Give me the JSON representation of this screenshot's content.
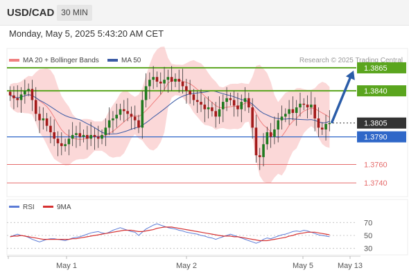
{
  "header": {
    "title": "USD/CAD",
    "timeframe": "30 MIN",
    "datetime": "Monday, May 5, 2025 5:43:20 AM CET"
  },
  "legend": {
    "ma20_label": "MA 20 + Bollinger Bands",
    "ma50_label": "MA 50",
    "source": "Research © 2025 Trading Central",
    "rsi_label": "RSI",
    "rsi_ma_label": "9MA"
  },
  "colors": {
    "resistance": "#5aa51e",
    "support": "#2f67c8",
    "support_weak": "#e56a6a",
    "candle_up": "#1f7a1f",
    "candle_down": "#a31a1a",
    "bollinger": "#f7b8b8",
    "ma20": "#f08080",
    "ma50": "#3b5ba5",
    "rsi": "#5b7bd6",
    "rsi_ma": "#d63030",
    "arrow": "#2a5ca8",
    "price_tag": "#333333"
  },
  "chart_data": {
    "type": "candlestick",
    "pair": "USD/CAD",
    "interval": "30 MIN",
    "y_range": [
      1.3725,
      1.388
    ],
    "x_labels": [
      "May 1",
      "May 2",
      "May 5",
      "May 13"
    ],
    "levels": [
      {
        "value": 1.3865,
        "label": "1.3865",
        "kind": "resistance"
      },
      {
        "value": 1.384,
        "label": "1.3840",
        "kind": "resistance"
      },
      {
        "value": 1.3805,
        "label": "1.3805",
        "kind": "last_price"
      },
      {
        "value": 1.379,
        "label": "1.3790",
        "kind": "support"
      },
      {
        "value": 1.376,
        "label": "1.3760",
        "kind": "support_weak"
      },
      {
        "value": 1.374,
        "label": "1.3740",
        "kind": "support_weak"
      }
    ],
    "last_price": 1.3805,
    "price_close_path": [
      1.3835,
      1.3832,
      1.383,
      1.3836,
      1.384,
      1.3842,
      1.383,
      1.3815,
      1.3808,
      1.381,
      1.3802,
      1.3795,
      1.3788,
      1.3783,
      1.378,
      1.3782,
      1.3788,
      1.3792,
      1.3794,
      1.379,
      1.3792,
      1.3788,
      1.3792,
      1.379,
      1.3788,
      1.3792,
      1.38,
      1.3808,
      1.381,
      1.3814,
      1.382,
      1.3818,
      1.3815,
      1.3812,
      1.3808,
      1.38,
      1.383,
      1.3845,
      1.3852,
      1.3855,
      1.385,
      1.3848,
      1.3852,
      1.3855,
      1.385,
      1.3853,
      1.385,
      1.3845,
      1.384,
      1.3836,
      1.383,
      1.3828,
      1.3825,
      1.382,
      1.3822,
      1.3818,
      1.3812,
      1.382,
      1.3828,
      1.3832,
      1.383,
      1.3824,
      1.382,
      1.3828,
      1.3832,
      1.3822,
      1.38,
      1.377,
      1.3768,
      1.3782,
      1.3795,
      1.379,
      1.3798,
      1.3808,
      1.3812,
      1.3815,
      1.382,
      1.3816,
      1.3822,
      1.3826,
      1.3825,
      1.3822,
      1.3825,
      1.381,
      1.38,
      1.3798,
      1.3804,
      1.3805
    ],
    "projection": {
      "from": 1.3805,
      "to": 1.3865
    },
    "rsi": {
      "levels": [
        70,
        50,
        30
      ],
      "range": [
        20,
        80
      ],
      "values": [
        48,
        50,
        52,
        50,
        49,
        47,
        44,
        42,
        40,
        42,
        44,
        45,
        45,
        44,
        43,
        42,
        44,
        46,
        47,
        48,
        50,
        52,
        54,
        55,
        56,
        54,
        53,
        55,
        58,
        60,
        62,
        60,
        58,
        56,
        55,
        50,
        55,
        60,
        63,
        66,
        68,
        66,
        64,
        62,
        61,
        60,
        58,
        57,
        55,
        54,
        53,
        52,
        50,
        49,
        47,
        46,
        44,
        46,
        48,
        50,
        52,
        50,
        48,
        46,
        44,
        42,
        40,
        38,
        40,
        44,
        46,
        45,
        47,
        49,
        51,
        52,
        54,
        56,
        57,
        56,
        58,
        57,
        55,
        53,
        51,
        50,
        49,
        48
      ],
      "ma9": [
        48,
        49,
        49,
        50,
        49,
        48,
        47,
        46,
        45,
        44,
        44,
        44,
        44,
        44,
        44,
        44,
        44,
        45,
        45,
        46,
        47,
        48,
        49,
        50,
        51,
        52,
        53,
        54,
        55,
        56,
        57,
        58,
        58,
        58,
        57,
        56,
        56,
        57,
        58,
        59,
        61,
        62,
        63,
        63,
        63,
        62,
        61,
        60,
        59,
        58,
        57,
        56,
        55,
        54,
        53,
        52,
        51,
        50,
        49,
        49,
        49,
        48,
        48,
        47,
        46,
        45,
        44,
        43,
        42,
        42,
        42,
        43,
        44,
        45,
        46,
        47,
        49,
        50,
        52,
        53,
        54,
        55,
        55,
        55,
        54,
        53,
        52,
        51
      ]
    }
  }
}
